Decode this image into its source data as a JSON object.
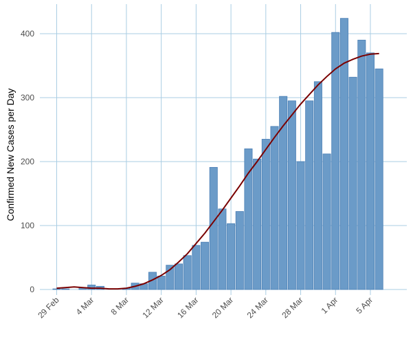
{
  "chart_data": {
    "type": "bar",
    "title": "",
    "xlabel": "",
    "ylabel": "Confirmed New Cases per Day",
    "ylim": [
      0,
      430
    ],
    "y_ticks": [
      0,
      100,
      200,
      300,
      400
    ],
    "x_tick_labels": [
      "29 Feb",
      "4 Mar",
      "8 Mar",
      "12 Mar",
      "16 Mar",
      "20 Mar",
      "24 Mar",
      "28 Mar",
      "1 Apr",
      "5 Apr"
    ],
    "categories": [
      "29 Feb",
      "1 Mar",
      "2 Mar",
      "3 Mar",
      "4 Mar",
      "5 Mar",
      "6 Mar",
      "7 Mar",
      "8 Mar",
      "9 Mar",
      "10 Mar",
      "11 Mar",
      "12 Mar",
      "13 Mar",
      "14 Mar",
      "15 Mar",
      "16 Mar",
      "17 Mar",
      "18 Mar",
      "19 Mar",
      "20 Mar",
      "21 Mar",
      "22 Mar",
      "23 Mar",
      "24 Mar",
      "25 Mar",
      "26 Mar",
      "27 Mar",
      "28 Mar",
      "29 Mar",
      "30 Mar",
      "31 Mar",
      "1 Apr",
      "2 Apr",
      "3 Apr",
      "4 Apr",
      "5 Apr",
      "6 Apr",
      "7 Apr"
    ],
    "values": [
      1,
      1,
      0,
      3,
      7,
      5,
      0,
      0,
      2,
      10,
      9,
      27,
      21,
      38,
      40,
      53,
      69,
      74,
      191,
      126,
      103,
      122,
      220,
      204,
      235,
      255,
      302,
      295,
      200,
      295,
      325,
      212,
      402,
      424,
      332,
      390,
      370,
      345,
      0
    ],
    "trend": [
      2,
      3,
      4,
      3,
      2,
      2,
      1,
      1,
      2,
      5,
      9,
      15,
      22,
      31,
      43,
      56,
      72,
      88,
      106,
      124,
      143,
      162,
      182,
      200,
      219,
      238,
      256,
      273,
      290,
      305,
      320,
      333,
      345,
      354,
      360,
      365,
      368,
      369
    ],
    "grid": true,
    "colors": {
      "bar_fill": "#6b9bc8",
      "bar_stroke": "#4a7fb5",
      "trend_line": "#7a0000",
      "grid": "#a9cde3",
      "tick_text": "#4d4d4d"
    }
  }
}
